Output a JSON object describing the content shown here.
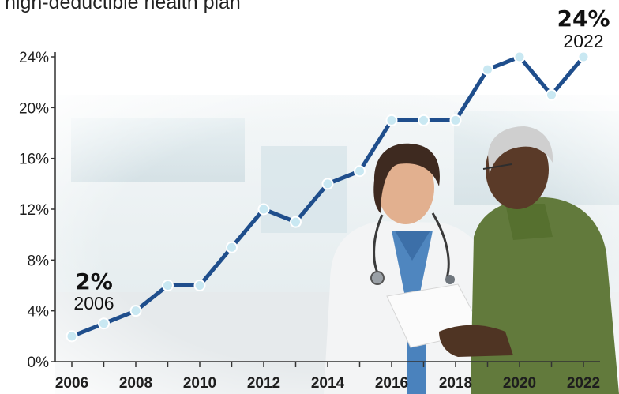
{
  "header": {
    "title_fragment": "high-deductible health plan"
  },
  "chart_data": {
    "type": "line",
    "title": "",
    "xlabel": "",
    "ylabel": "",
    "x": [
      2006,
      2007,
      2008,
      2009,
      2010,
      2011,
      2012,
      2013,
      2014,
      2015,
      2016,
      2017,
      2018,
      2019,
      2020,
      2021,
      2022
    ],
    "values": [
      2,
      3,
      4,
      6,
      6,
      9,
      12,
      11,
      14,
      15,
      19,
      19,
      19,
      23,
      24,
      21,
      24
    ],
    "xlim": [
      2006,
      2022
    ],
    "ylim": [
      0,
      24
    ],
    "x_tick_labels": [
      "2006",
      "2008",
      "2010",
      "2012",
      "2014",
      "2016",
      "2018",
      "2020",
      "2022"
    ],
    "y_tick_labels": [
      "0%",
      "4%",
      "8%",
      "12%",
      "16%",
      "20%",
      "24%"
    ],
    "y_tick_values": [
      0,
      4,
      8,
      12,
      16,
      20,
      24
    ],
    "grid": false,
    "line_color": "#1f4e8c",
    "marker_fill": "#c9e8f2",
    "annotations": [
      {
        "value": "2%",
        "label": "2006",
        "x": 2006,
        "y": 2
      },
      {
        "value": "24%",
        "label": "2022",
        "x": 2022,
        "y": 24
      }
    ]
  }
}
